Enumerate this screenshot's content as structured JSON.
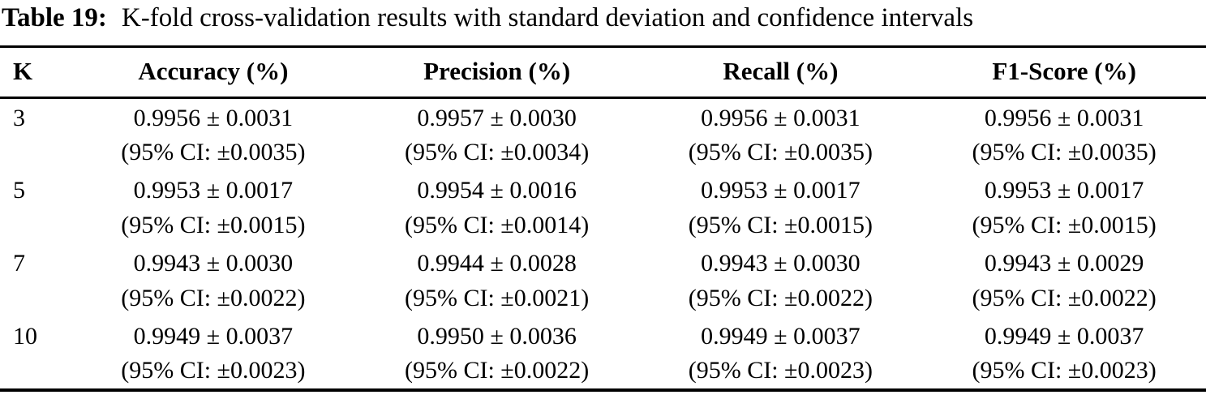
{
  "caption": {
    "label": "Table 19:",
    "text": "K-fold cross-validation results with standard deviation and confidence intervals"
  },
  "columns": [
    "K",
    "Accuracy (%)",
    "Precision (%)",
    "Recall (%)",
    "F1-Score (%)"
  ],
  "rows": [
    {
      "k": "3",
      "cells": [
        {
          "value": "0.9956 ± 0.0031",
          "ci": "(95% CI: ±0.0035)"
        },
        {
          "value": "0.9957 ± 0.0030",
          "ci": "(95% CI: ±0.0034)"
        },
        {
          "value": "0.9956 ± 0.0031",
          "ci": "(95% CI: ±0.0035)"
        },
        {
          "value": "0.9956 ± 0.0031",
          "ci": "(95% CI: ±0.0035)"
        }
      ]
    },
    {
      "k": "5",
      "cells": [
        {
          "value": "0.9953 ± 0.0017",
          "ci": "(95% CI: ±0.0015)"
        },
        {
          "value": "0.9954 ± 0.0016",
          "ci": "(95% CI: ±0.0014)"
        },
        {
          "value": "0.9953 ± 0.0017",
          "ci": "(95% CI: ±0.0015)"
        },
        {
          "value": "0.9953 ± 0.0017",
          "ci": "(95% CI: ±0.0015)"
        }
      ]
    },
    {
      "k": "7",
      "cells": [
        {
          "value": "0.9943 ± 0.0030",
          "ci": "(95% CI: ±0.0022)"
        },
        {
          "value": "0.9944 ± 0.0028",
          "ci": "(95% CI: ±0.0021)"
        },
        {
          "value": "0.9943 ± 0.0030",
          "ci": "(95% CI: ±0.0022)"
        },
        {
          "value": "0.9943 ± 0.0029",
          "ci": "(95% CI: ±0.0022)"
        }
      ]
    },
    {
      "k": "10",
      "cells": [
        {
          "value": "0.9949 ± 0.0037",
          "ci": "(95% CI: ±0.0023)"
        },
        {
          "value": "0.9950 ± 0.0036",
          "ci": "(95% CI: ±0.0022)"
        },
        {
          "value": "0.9949 ± 0.0037",
          "ci": "(95% CI: ±0.0023)"
        },
        {
          "value": "0.9949 ± 0.0037",
          "ci": "(95% CI: ±0.0023)"
        }
      ]
    }
  ]
}
